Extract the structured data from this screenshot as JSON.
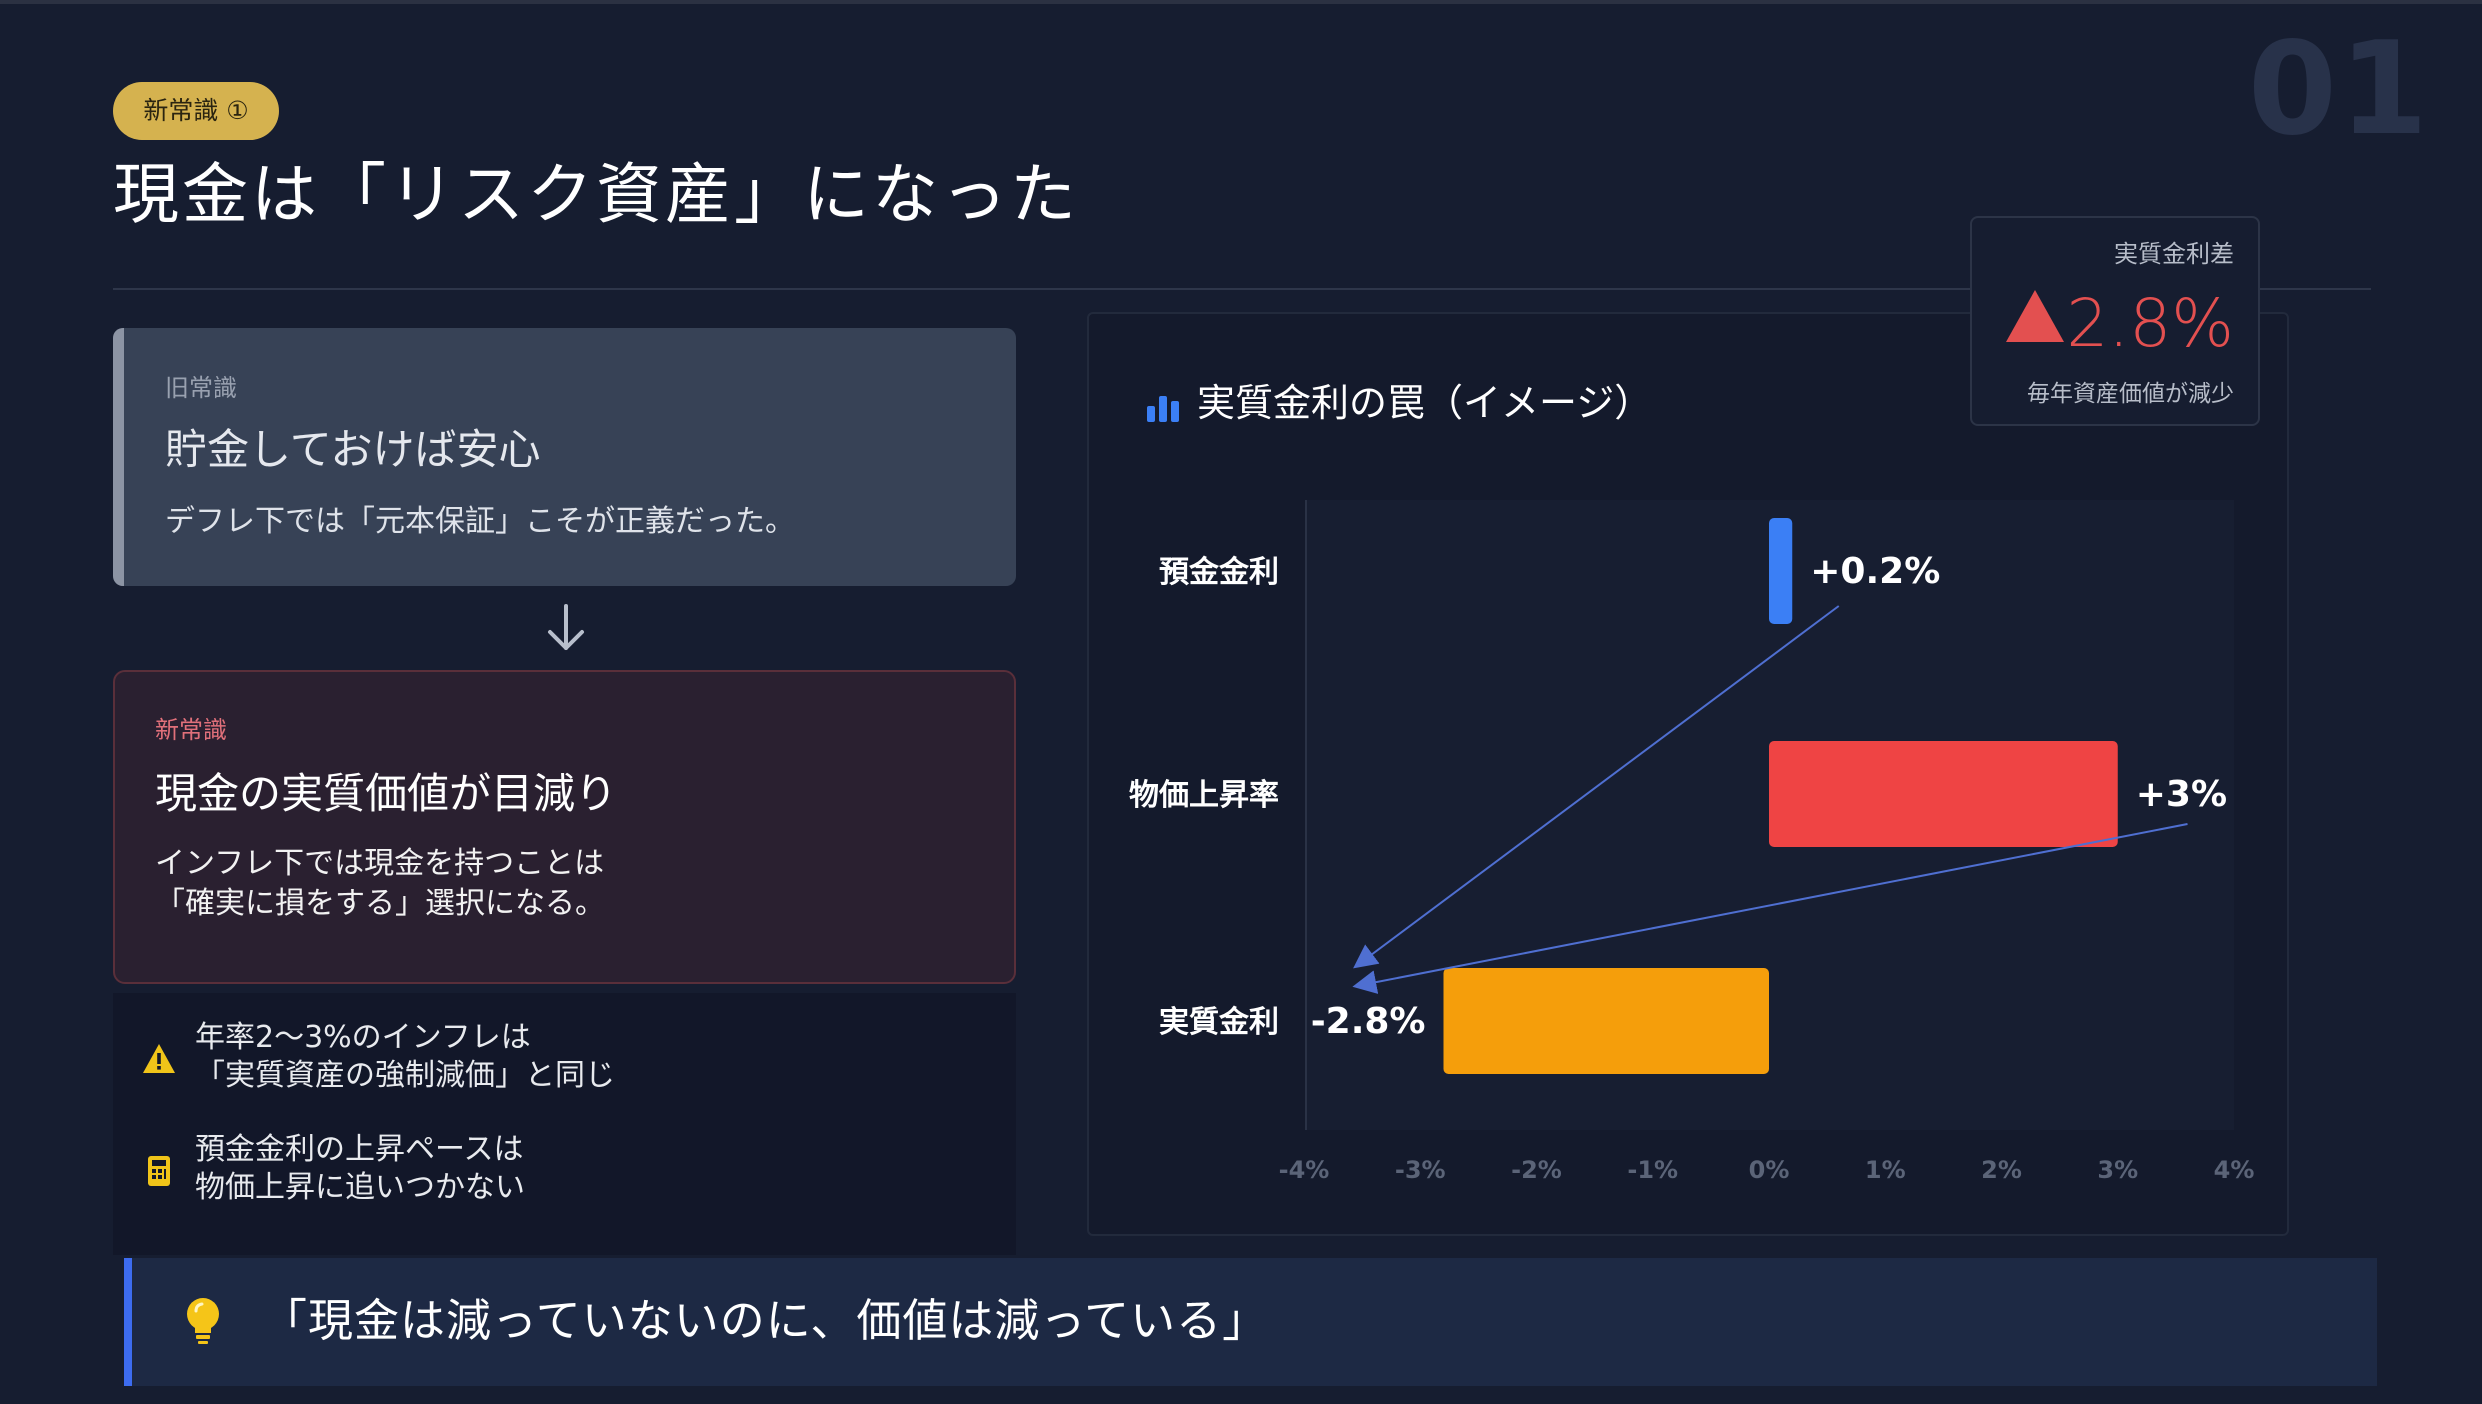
{
  "slide": {
    "number": "01",
    "badge": "新常識 ①",
    "title": "現金は「リスク資産」になった"
  },
  "kpi": {
    "label": "実質金利差",
    "value": "2.8%",
    "note": "毎年資産価値が減少",
    "color": "#e35050"
  },
  "old_belief": {
    "kicker": "旧常識",
    "title": "貯金しておけば安心",
    "body": "デフレ下では「元本保証」こそが正義だった。"
  },
  "new_belief": {
    "kicker": "新常識",
    "title": "現金の実質価値が目減り",
    "body_line1": "インフレ下では現金を持つことは",
    "body_line2": "「確実に損をする」選択になる。"
  },
  "notes": [
    {
      "icon": "warning-icon",
      "line1": "年率2〜3%のインフレは",
      "line2": "「実質資産の強制減価」と同じ"
    },
    {
      "icon": "calculator-icon",
      "line1": "預金金利の上昇ペースは",
      "line2": "物価上昇に追いつかない"
    }
  ],
  "chart_title": "実質金利の罠（イメージ）",
  "chart_data": {
    "type": "bar",
    "orientation": "horizontal",
    "categories": [
      "預金金利",
      "物価上昇率",
      "実質金利"
    ],
    "values": [
      0.2,
      3,
      -2.8
    ],
    "data_labels": [
      "+0.2%",
      "+3%",
      "-2.8%"
    ],
    "colors": [
      "#3b7ff5",
      "#ef4444",
      "#f59e0b"
    ],
    "xlim": [
      -4,
      4
    ],
    "x_ticks": [
      -4,
      -3,
      -2,
      -1,
      0,
      1,
      2,
      3,
      4
    ],
    "x_tick_labels": [
      "-4%",
      "-3%",
      "-2%",
      "-1%",
      "0%",
      "1%",
      "2%",
      "3%",
      "4%"
    ],
    "grid": false,
    "legend": "none"
  },
  "quote": "「現金は減っていないのに、価値は減っている」"
}
